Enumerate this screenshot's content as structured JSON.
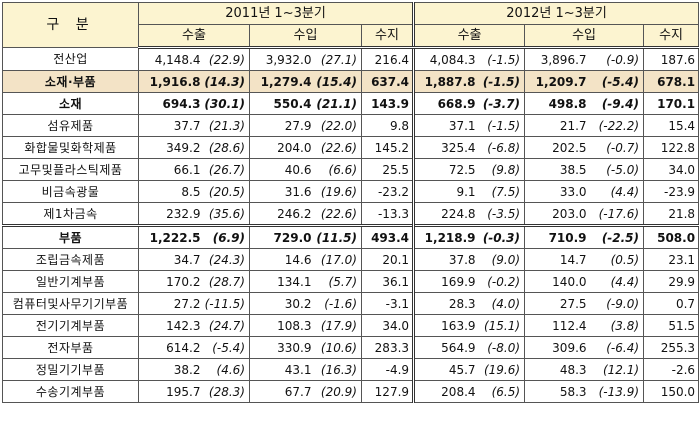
{
  "header": {
    "corner": "구 분",
    "period_2011": "2011년 1~3분기",
    "period_2012": "2012년 1~3분기",
    "exports": "수출",
    "imports": "수입",
    "balance": "수지"
  },
  "rows": [
    {
      "label": "전산업",
      "e11": "4,148.4",
      "e11p": "(22.9)",
      "i11": "3,932.0",
      "i11p": "(27.1)",
      "b11": "216.4",
      "e12": "4,084.3",
      "e12p": "(-1.5)",
      "i12": "3,896.7",
      "i12p": "(-0.9)",
      "b12": "187.6"
    },
    {
      "label": "소재·부품",
      "e11": "1,916.8",
      "e11p": "(14.3)",
      "i11": "1,279.4",
      "i11p": "(15.4)",
      "b11": "637.4",
      "e12": "1,887.8",
      "e12p": "(-1.5)",
      "i12": "1,209.7",
      "i12p": "(-5.4)",
      "b12": "678.1"
    },
    {
      "label": "소재",
      "e11": "694.3",
      "e11p": "(30.1)",
      "i11": "550.4",
      "i11p": "(21.1)",
      "b11": "143.9",
      "e12": "668.9",
      "e12p": "(-3.7)",
      "i12": "498.8",
      "i12p": "(-9.4)",
      "b12": "170.1"
    },
    {
      "label": "섬유제품",
      "e11": "37.7",
      "e11p": "(21.3)",
      "i11": "27.9",
      "i11p": "(22.0)",
      "b11": "9.8",
      "e12": "37.1",
      "e12p": "(-1.5)",
      "i12": "21.7",
      "i12p": "(-22.2)",
      "b12": "15.4"
    },
    {
      "label": "화합물및화학제품",
      "e11": "349.2",
      "e11p": "(28.6)",
      "i11": "204.0",
      "i11p": "(22.6)",
      "b11": "145.2",
      "e12": "325.4",
      "e12p": "(-6.8)",
      "i12": "202.5",
      "i12p": "(-0.7)",
      "b12": "122.8"
    },
    {
      "label": "고무및플라스틱제품",
      "e11": "66.1",
      "e11p": "(26.7)",
      "i11": "40.6",
      "i11p": "(6.6)",
      "b11": "25.5",
      "e12": "72.5",
      "e12p": "(9.8)",
      "i12": "38.5",
      "i12p": "(-5.0)",
      "b12": "34.0"
    },
    {
      "label": "비금속광물",
      "e11": "8.5",
      "e11p": "(20.5)",
      "i11": "31.6",
      "i11p": "(19.6)",
      "b11": "-23.2",
      "e12": "9.1",
      "e12p": "(7.5)",
      "i12": "33.0",
      "i12p": "(4.4)",
      "b12": "-23.9"
    },
    {
      "label": "제1차금속",
      "e11": "232.9",
      "e11p": "(35.6)",
      "i11": "246.2",
      "i11p": "(22.6)",
      "b11": "-13.3",
      "e12": "224.8",
      "e12p": "(-3.5)",
      "i12": "203.0",
      "i12p": "(-17.6)",
      "b12": "21.8"
    },
    {
      "label": "부품",
      "e11": "1,222.5",
      "e11p": "(6.9)",
      "i11": "729.0",
      "i11p": "(11.5)",
      "b11": "493.4",
      "e12": "1,218.9",
      "e12p": "(-0.3)",
      "i12": "710.9",
      "i12p": "(-2.5)",
      "b12": "508.0"
    },
    {
      "label": "조립금속제품",
      "e11": "34.7",
      "e11p": "(24.3)",
      "i11": "14.6",
      "i11p": "(17.0)",
      "b11": "20.1",
      "e12": "37.8",
      "e12p": "(9.0)",
      "i12": "14.7",
      "i12p": "(0.5)",
      "b12": "23.1"
    },
    {
      "label": "일반기계부품",
      "e11": "170.2",
      "e11p": "(28.7)",
      "i11": "134.1",
      "i11p": "(5.7)",
      "b11": "36.1",
      "e12": "169.9",
      "e12p": "(-0.2)",
      "i12": "140.0",
      "i12p": "(4.4)",
      "b12": "29.9"
    },
    {
      "label": "컴퓨터및사무기기부품",
      "e11": "27.2",
      "e11p": "(-11.5)",
      "i11": "30.2",
      "i11p": "(-1.6)",
      "b11": "-3.1",
      "e12": "28.3",
      "e12p": "(4.0)",
      "i12": "27.5",
      "i12p": "(-9.0)",
      "b12": "0.7"
    },
    {
      "label": "전기기계부품",
      "e11": "142.3",
      "e11p": "(24.7)",
      "i11": "108.3",
      "i11p": "(17.9)",
      "b11": "34.0",
      "e12": "163.9",
      "e12p": "(15.1)",
      "i12": "112.4",
      "i12p": "(3.8)",
      "b12": "51.5"
    },
    {
      "label": "전자부품",
      "e11": "614.2",
      "e11p": "(-5.4)",
      "i11": "330.9",
      "i11p": "(10.6)",
      "b11": "283.3",
      "e12": "564.9",
      "e12p": "(-8.0)",
      "i12": "309.6",
      "i12p": "(-6.4)",
      "b12": "255.3"
    },
    {
      "label": "정밀기기부품",
      "e11": "38.2",
      "e11p": "(4.6)",
      "i11": "43.1",
      "i11p": "(16.3)",
      "b11": "-4.9",
      "e12": "45.7",
      "e12p": "(19.6)",
      "i12": "48.3",
      "i12p": "(12.1)",
      "b12": "-2.6"
    },
    {
      "label": "수송기계부품",
      "e11": "195.7",
      "e11p": "(28.3)",
      "i11": "67.7",
      "i11p": "(20.9)",
      "b11": "127.9",
      "e12": "208.4",
      "e12p": "(6.5)",
      "i12": "58.3",
      "i12p": "(-13.9)",
      "b12": "150.0"
    }
  ]
}
